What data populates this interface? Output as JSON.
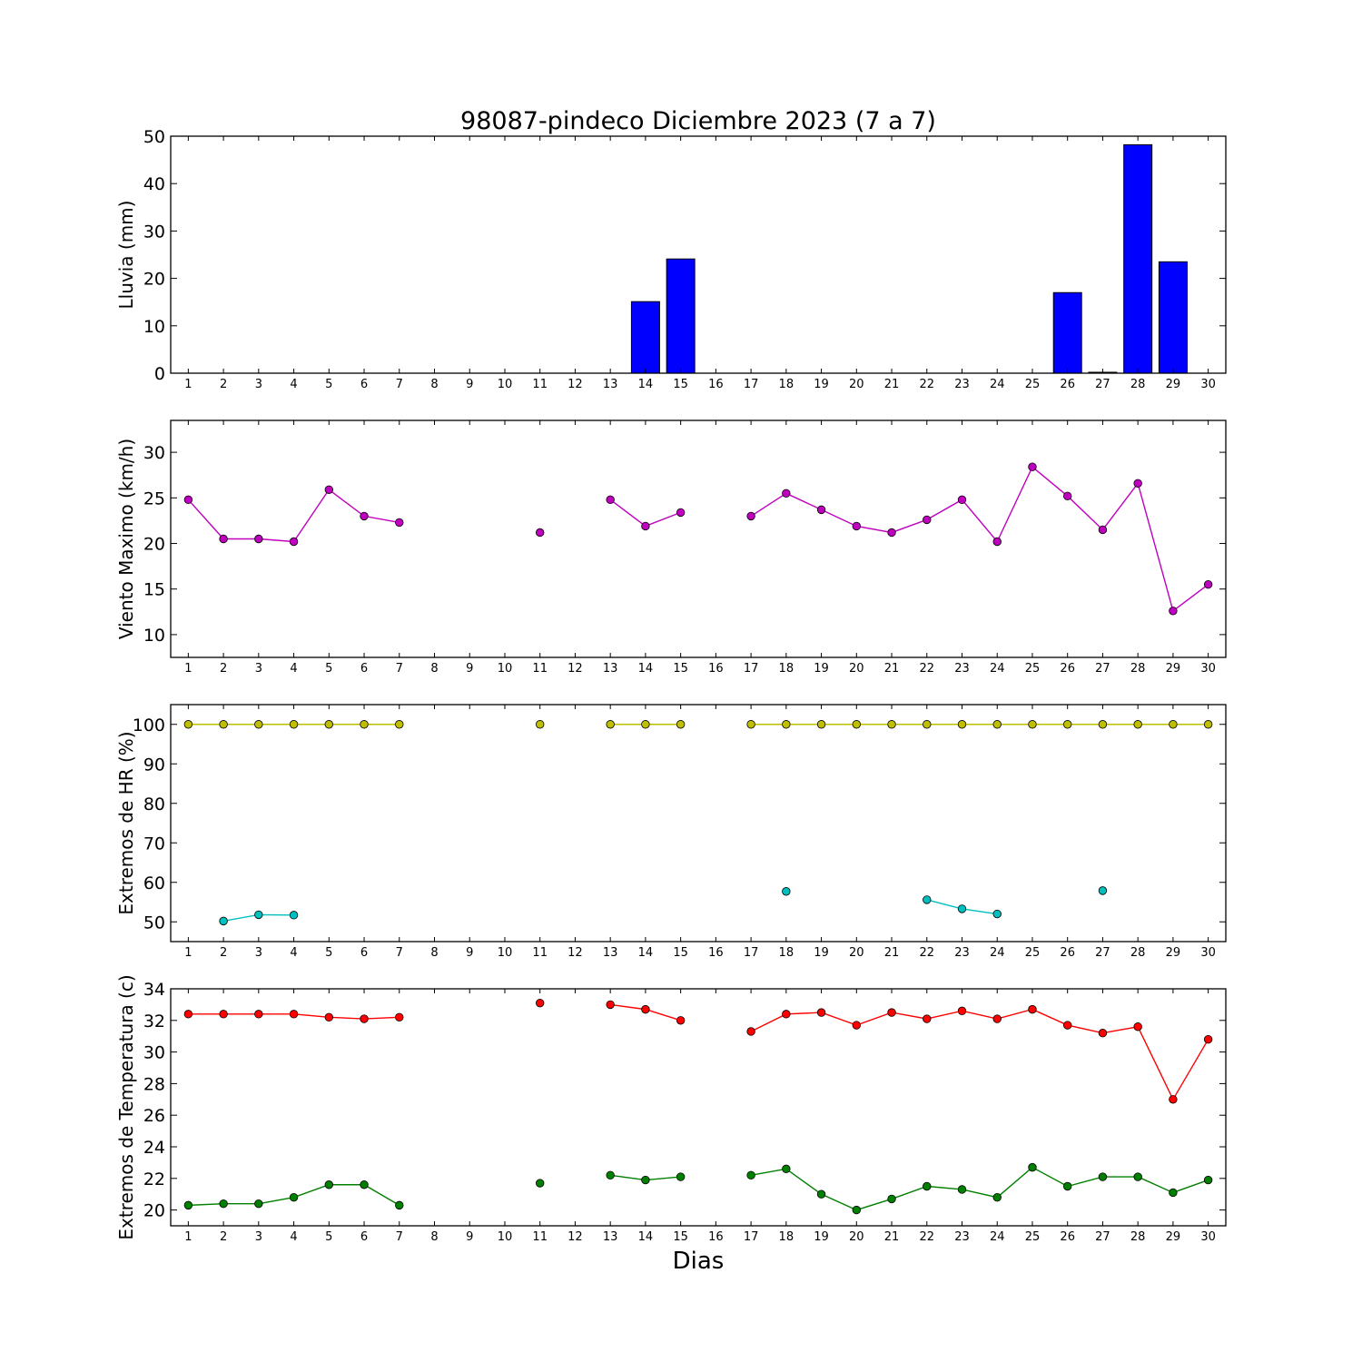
{
  "title": "98087-pindeco Diciembre 2023  (7 a 7)",
  "xlabel": "Dias",
  "chart_data": [
    {
      "type": "bar",
      "ylabel": "Lluvia (mm)",
      "ylim": [
        0,
        50
      ],
      "yticks": [
        0,
        10,
        20,
        30,
        40,
        50
      ],
      "xlim": [
        0.5,
        30.5
      ],
      "x": [
        1,
        2,
        3,
        4,
        5,
        6,
        7,
        8,
        9,
        10,
        11,
        12,
        13,
        14,
        15,
        16,
        17,
        18,
        19,
        20,
        21,
        22,
        23,
        24,
        25,
        26,
        27,
        28,
        29,
        30
      ],
      "series": [
        {
          "color": "#0000ff",
          "values": [
            0,
            0,
            0,
            0,
            0,
            0,
            0,
            null,
            null,
            null,
            0,
            null,
            0,
            15.1,
            24.1,
            null,
            0,
            0,
            0,
            0,
            0,
            0,
            0,
            0,
            0,
            17.0,
            0.2,
            48.2,
            23.5,
            null
          ]
        }
      ]
    },
    {
      "type": "line",
      "ylabel": "Viento Maximo (km/h)",
      "ylim": [
        7.5,
        33.5
      ],
      "yticks": [
        10,
        15,
        20,
        25,
        30
      ],
      "xlim": [
        0.5,
        30.5
      ],
      "x": [
        1,
        2,
        3,
        4,
        5,
        6,
        7,
        8,
        9,
        10,
        11,
        12,
        13,
        14,
        15,
        16,
        17,
        18,
        19,
        20,
        21,
        22,
        23,
        24,
        25,
        26,
        27,
        28,
        29,
        30
      ],
      "series": [
        {
          "color": "#bf00bf",
          "values": [
            24.8,
            20.5,
            20.5,
            20.2,
            25.9,
            23.0,
            22.3,
            null,
            null,
            null,
            21.2,
            null,
            24.8,
            21.9,
            23.4,
            null,
            23.0,
            25.5,
            23.7,
            21.9,
            21.2,
            22.6,
            24.8,
            20.2,
            28.4,
            25.2,
            21.5,
            26.6,
            12.6,
            15.5
          ]
        }
      ]
    },
    {
      "type": "line",
      "ylabel": "Extremos de HR (%)",
      "ylim": [
        45,
        105
      ],
      "yticks": [
        50,
        60,
        70,
        80,
        90,
        100
      ],
      "xlim": [
        0.5,
        30.5
      ],
      "x": [
        1,
        2,
        3,
        4,
        5,
        6,
        7,
        8,
        9,
        10,
        11,
        12,
        13,
        14,
        15,
        16,
        17,
        18,
        19,
        20,
        21,
        22,
        23,
        24,
        25,
        26,
        27,
        28,
        29,
        30
      ],
      "series": [
        {
          "color": "#bfbf00",
          "values": [
            100,
            100,
            100,
            100,
            100,
            100,
            100,
            null,
            null,
            null,
            100,
            null,
            100,
            100,
            100,
            null,
            100,
            100,
            100,
            100,
            100,
            100,
            100,
            100,
            100,
            100,
            100,
            100,
            100,
            100
          ]
        },
        {
          "color": "#00bfbf",
          "values": [
            null,
            50.2,
            51.8,
            51.7,
            null,
            null,
            null,
            null,
            null,
            null,
            null,
            null,
            null,
            null,
            null,
            null,
            null,
            57.7,
            null,
            null,
            null,
            55.6,
            53.3,
            52.0,
            null,
            null,
            57.9,
            null,
            null,
            null
          ]
        }
      ]
    },
    {
      "type": "line",
      "ylabel": "Extremos de Temperatura (c)",
      "ylim": [
        19,
        34
      ],
      "yticks": [
        20,
        22,
        24,
        26,
        28,
        30,
        32,
        34
      ],
      "xlim": [
        0.5,
        30.5
      ],
      "x": [
        1,
        2,
        3,
        4,
        5,
        6,
        7,
        8,
        9,
        10,
        11,
        12,
        13,
        14,
        15,
        16,
        17,
        18,
        19,
        20,
        21,
        22,
        23,
        24,
        25,
        26,
        27,
        28,
        29,
        30
      ],
      "series": [
        {
          "color": "#ff0000",
          "values": [
            32.4,
            32.4,
            32.4,
            32.4,
            32.2,
            32.1,
            32.2,
            null,
            null,
            null,
            33.1,
            null,
            33.0,
            32.7,
            32.0,
            null,
            31.3,
            32.4,
            32.5,
            31.7,
            32.5,
            32.1,
            32.6,
            32.1,
            32.7,
            31.7,
            31.2,
            31.6,
            27.0,
            30.8
          ]
        },
        {
          "color": "#008000",
          "values": [
            20.3,
            20.4,
            20.4,
            20.8,
            21.6,
            21.6,
            20.3,
            null,
            null,
            null,
            21.7,
            null,
            22.2,
            21.9,
            22.1,
            null,
            22.2,
            22.6,
            21.0,
            20.0,
            20.7,
            21.5,
            21.3,
            20.8,
            22.7,
            21.5,
            22.1,
            22.1,
            21.1,
            21.9
          ]
        }
      ]
    }
  ]
}
